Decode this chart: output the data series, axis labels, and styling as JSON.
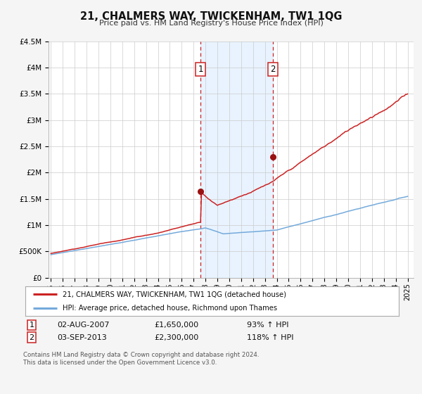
{
  "title": "21, CHALMERS WAY, TWICKENHAM, TW1 1QG",
  "subtitle": "Price paid vs. HM Land Registry's House Price Index (HPI)",
  "legend_line1": "21, CHALMERS WAY, TWICKENHAM, TW1 1QG (detached house)",
  "legend_line2": "HPI: Average price, detached house, Richmond upon Thames",
  "sale1_date_str": "02-AUG-2007",
  "sale1_price_str": "£1,650,000",
  "sale1_hpi_str": "93% ↑ HPI",
  "sale2_date_str": "03-SEP-2013",
  "sale2_price_str": "£2,300,000",
  "sale2_hpi_str": "118% ↑ HPI",
  "footnote1": "Contains HM Land Registry data © Crown copyright and database right 2024.",
  "footnote2": "This data is licensed under the Open Government Licence v3.0.",
  "sale1_x": 2007.58,
  "sale1_y": 1650000,
  "sale2_x": 2013.67,
  "sale2_y": 2300000,
  "hpi_color": "#74aadb",
  "price_color": "#cc2222",
  "sale_dot_color": "#991111",
  "fig_bg": "#f5f5f5",
  "plot_bg": "#ffffff",
  "vline_color": "#cc2222",
  "shade_color": "#ddeeff",
  "ylim_max": 4500000,
  "yticks": [
    0,
    500000,
    1000000,
    1500000,
    2000000,
    2500000,
    3000000,
    3500000,
    4000000,
    4500000
  ],
  "ytick_labels": [
    "£0",
    "£500K",
    "£1M",
    "£1.5M",
    "£2M",
    "£2.5M",
    "£3M",
    "£3.5M",
    "£4M",
    "£4.5M"
  ],
  "xmin": 1994.8,
  "xmax": 2025.5,
  "noise_seed": 7
}
